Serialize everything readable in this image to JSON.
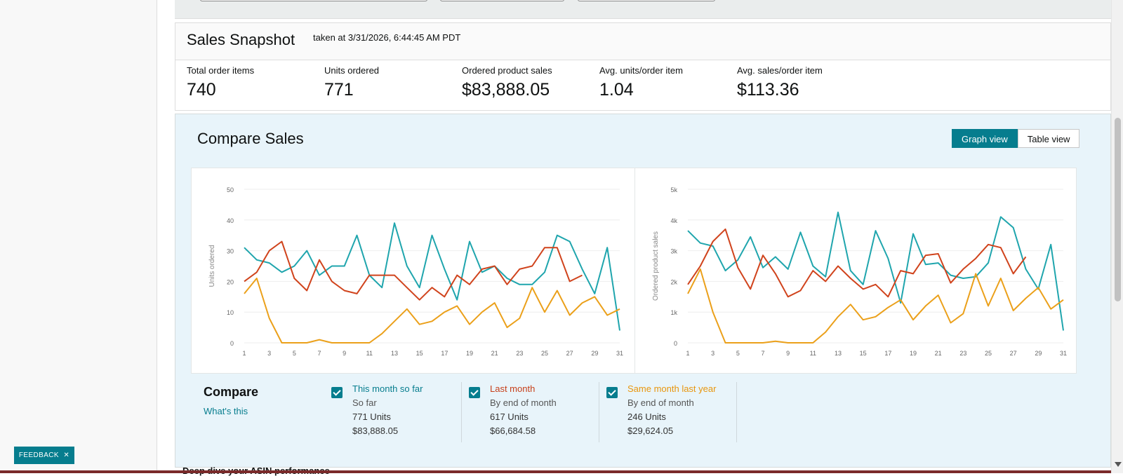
{
  "snapshot": {
    "title": "Sales Snapshot",
    "taken": "taken at 3/31/2026, 6:44:45 AM PDT",
    "metrics": [
      {
        "label": "Total order items",
        "value": "740"
      },
      {
        "label": "Units ordered",
        "value": "771"
      },
      {
        "label": "Ordered product sales",
        "value": "$83,888.05"
      },
      {
        "label": "Avg. units/order item",
        "value": "1.04"
      },
      {
        "label": "Avg. sales/order item",
        "value": "$113.36"
      }
    ]
  },
  "compare_sales": {
    "title": "Compare Sales",
    "graph_view": "Graph view",
    "table_view": "Table view",
    "compare_label": "Compare",
    "whats_this": "What's this",
    "legend": [
      {
        "name": "This month so far",
        "period": "So far",
        "units": "771 Units",
        "sales": "$83,888.05",
        "color": "#1fa5ad"
      },
      {
        "name": "Last month",
        "period": "By end of month",
        "units": "617 Units",
        "sales": "$66,684.58",
        "color": "#d0431c"
      },
      {
        "name": "Same month last year",
        "period": "By end of month",
        "units": "246 Units",
        "sales": "$29,624.05",
        "color": "#eba01a"
      }
    ]
  },
  "feedback": "FEEDBACK",
  "clipped_text": "Deep dive your ASIN performance",
  "chart_data": [
    {
      "type": "line",
      "ylabel": "Units ordered",
      "ylim": [
        0,
        50
      ],
      "yticks": [
        "0",
        "10",
        "20",
        "30",
        "40",
        "50"
      ],
      "xticks": [
        "1",
        "3",
        "5",
        "7",
        "9",
        "11",
        "13",
        "15",
        "17",
        "19",
        "21",
        "23",
        "25",
        "27",
        "29",
        "31"
      ],
      "x": [
        1,
        2,
        3,
        4,
        5,
        6,
        7,
        8,
        9,
        10,
        11,
        12,
        13,
        14,
        15,
        16,
        17,
        18,
        19,
        20,
        21,
        22,
        23,
        24,
        25,
        26,
        27,
        28,
        29,
        30,
        31
      ],
      "series": [
        {
          "color": "#1fa5ad",
          "values": [
            31,
            27,
            26,
            23,
            25,
            30,
            22,
            25,
            25,
            35,
            22,
            18,
            39,
            25,
            18,
            35,
            24,
            14,
            33,
            23,
            25,
            21,
            19,
            19,
            23,
            35,
            33,
            24,
            16,
            31,
            4
          ]
        },
        {
          "color": "#d0431c",
          "values": [
            20,
            23,
            30,
            33,
            21,
            17,
            27,
            20,
            17,
            16,
            22,
            22,
            22,
            18,
            14,
            18,
            15,
            22,
            19,
            24,
            25,
            19,
            24,
            25,
            31,
            31,
            20,
            22,
            null,
            null,
            null
          ]
        },
        {
          "color": "#eba01a",
          "values": [
            16,
            21,
            8,
            0,
            0,
            0,
            1,
            0,
            0,
            0,
            0,
            3,
            7,
            11,
            6,
            7,
            10,
            12,
            6,
            10,
            13,
            5,
            8,
            18,
            10,
            17,
            9,
            13,
            15,
            9,
            11
          ]
        }
      ]
    },
    {
      "type": "line",
      "ylabel": "Ordered product sales",
      "ylim": [
        0,
        5000
      ],
      "yticks": [
        "0",
        "1k",
        "2k",
        "3k",
        "4k",
        "5k"
      ],
      "xticks": [
        "1",
        "3",
        "5",
        "7",
        "9",
        "11",
        "13",
        "15",
        "17",
        "19",
        "21",
        "23",
        "25",
        "27",
        "29",
        "31"
      ],
      "x": [
        1,
        2,
        3,
        4,
        5,
        6,
        7,
        8,
        9,
        10,
        11,
        12,
        13,
        14,
        15,
        16,
        17,
        18,
        19,
        20,
        21,
        22,
        23,
        24,
        25,
        26,
        27,
        28,
        29,
        30,
        31
      ],
      "series": [
        {
          "color": "#1fa5ad",
          "values": [
            3650,
            3250,
            3150,
            2350,
            2700,
            3450,
            2450,
            2800,
            2400,
            3600,
            2500,
            2150,
            4250,
            2350,
            1900,
            3650,
            2750,
            1300,
            3550,
            2550,
            2600,
            2200,
            2100,
            2150,
            2600,
            4100,
            3750,
            2400,
            1750,
            3200,
            400
          ]
        },
        {
          "color": "#d0431c",
          "values": [
            1900,
            2500,
            3300,
            3700,
            2450,
            1750,
            2850,
            2250,
            1500,
            1700,
            2350,
            2000,
            2500,
            2100,
            1750,
            1900,
            1500,
            2350,
            2250,
            2850,
            2900,
            1950,
            2400,
            2750,
            3200,
            3100,
            2250,
            2800,
            null,
            null,
            null
          ]
        },
        {
          "color": "#eba01a",
          "values": [
            1600,
            2400,
            1000,
            0,
            0,
            0,
            0,
            50,
            0,
            0,
            0,
            350,
            850,
            1250,
            750,
            850,
            1150,
            1400,
            750,
            1200,
            1550,
            650,
            950,
            2250,
            1200,
            2100,
            1050,
            1450,
            1800,
            1100,
            1400
          ]
        }
      ]
    }
  ]
}
